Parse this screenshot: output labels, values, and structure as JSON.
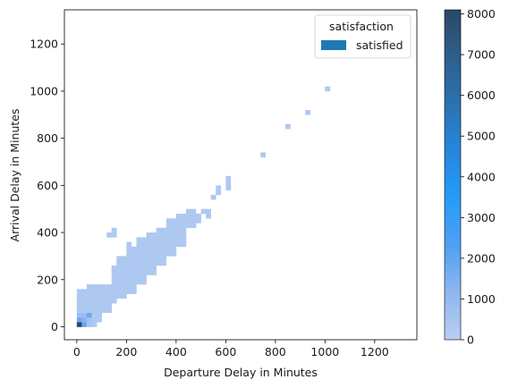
{
  "chart_data": {
    "type": "heatmap",
    "xlabel": "Departure Delay in Minutes",
    "ylabel": "Arrival Delay in Minutes",
    "xlim": [
      -50,
      1370
    ],
    "ylim": [
      -55,
      1345
    ],
    "xticks": [
      0,
      200,
      400,
      600,
      800,
      1000,
      1200
    ],
    "yticks": [
      0,
      200,
      400,
      600,
      800,
      1000,
      1200
    ],
    "bin_size": 20,
    "legend": {
      "title": "satisfaction",
      "entries": [
        {
          "label": "satisfied",
          "color": "#1f77b4"
        }
      ],
      "placement": "upper-right"
    },
    "colorbar": {
      "min": 0,
      "max": 8100,
      "ticks": [
        0,
        1000,
        2000,
        3000,
        4000,
        5000,
        6000,
        7000,
        8000
      ],
      "colors": [
        "#b9cff2",
        "#8fb6ef",
        "#4fa0f2",
        "#249cf8",
        "#2686de",
        "#2b72b2",
        "#2e5f8c",
        "#2c4766"
      ]
    },
    "bins": [
      {
        "x": 0,
        "y": 0,
        "count": 8100
      },
      {
        "x": 20,
        "y": 0,
        "count": 2000
      },
      {
        "x": 0,
        "y": 20,
        "count": 1800
      },
      {
        "x": 20,
        "y": 20,
        "count": 1300
      },
      {
        "x": 40,
        "y": 20,
        "count": 600
      },
      {
        "x": 40,
        "y": 40,
        "count": 1800
      },
      {
        "x": 0,
        "y": 40,
        "count": 700
      },
      {
        "x": 20,
        "y": 40,
        "count": 900
      },
      {
        "x": 40,
        "y": 0,
        "count": 500
      }
    ],
    "regions": [
      {
        "x": [
          0,
          40
        ],
        "y": [
          0,
          160
        ],
        "count": 300
      },
      {
        "x": [
          40,
          80
        ],
        "y": [
          0,
          180
        ],
        "count": 300
      },
      {
        "x": [
          80,
          100
        ],
        "y": [
          20,
          180
        ],
        "count": 300
      },
      {
        "x": [
          100,
          140
        ],
        "y": [
          60,
          180
        ],
        "count": 300
      },
      {
        "x": [
          140,
          160
        ],
        "y": [
          100,
          260
        ],
        "count": 300
      },
      {
        "x": [
          160,
          200
        ],
        "y": [
          120,
          300
        ],
        "count": 300
      },
      {
        "x": [
          200,
          240
        ],
        "y": [
          140,
          340
        ],
        "count": 300
      },
      {
        "x": [
          240,
          280
        ],
        "y": [
          180,
          380
        ],
        "count": 300
      },
      {
        "x": [
          280,
          320
        ],
        "y": [
          220,
          400
        ],
        "count": 300
      },
      {
        "x": [
          320,
          360
        ],
        "y": [
          260,
          420
        ],
        "count": 300
      },
      {
        "x": [
          360,
          400
        ],
        "y": [
          300,
          460
        ],
        "count": 300
      },
      {
        "x": [
          400,
          440
        ],
        "y": [
          340,
          480
        ],
        "count": 300
      },
      {
        "x": [
          440,
          480
        ],
        "y": [
          420,
          500
        ],
        "count": 300
      },
      {
        "x": [
          480,
          500
        ],
        "y": [
          440,
          480
        ],
        "count": 300
      },
      {
        "x": [
          500,
          520
        ],
        "y": [
          480,
          500
        ],
        "count": 300
      },
      {
        "x": [
          520,
          540
        ],
        "y": [
          460,
          500
        ],
        "count": 300
      },
      {
        "x": [
          120,
          160
        ],
        "y": [
          380,
          400
        ],
        "count": 300
      },
      {
        "x": [
          140,
          160
        ],
        "y": [
          400,
          420
        ],
        "count": 300
      },
      {
        "x": [
          200,
          220
        ],
        "y": [
          340,
          360
        ],
        "count": 300
      },
      {
        "x": [
          540,
          560
        ],
        "y": [
          540,
          560
        ],
        "count": 300
      },
      {
        "x": [
          560,
          580
        ],
        "y": [
          560,
          600
        ],
        "count": 300
      },
      {
        "x": [
          600,
          620
        ],
        "y": [
          580,
          640
        ],
        "count": 300
      },
      {
        "x": [
          740,
          760
        ],
        "y": [
          720,
          740
        ],
        "count": 300
      },
      {
        "x": [
          840,
          860
        ],
        "y": [
          840,
          860
        ],
        "count": 300
      },
      {
        "x": [
          920,
          940
        ],
        "y": [
          900,
          920
        ],
        "count": 300
      },
      {
        "x": [
          1000,
          1020
        ],
        "y": [
          1000,
          1020
        ],
        "count": 300
      }
    ]
  }
}
